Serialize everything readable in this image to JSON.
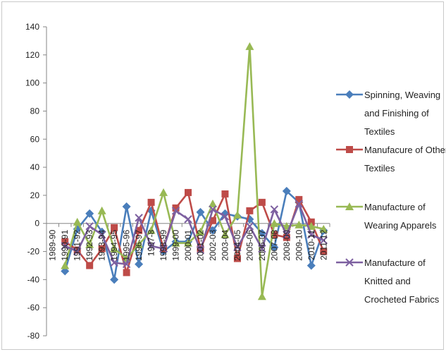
{
  "chart_data": {
    "type": "line",
    "title": "",
    "xlabel": "",
    "ylabel": "",
    "ylim": [
      -80,
      140
    ],
    "yticks": [
      140,
      120,
      100,
      80,
      60,
      40,
      20,
      0,
      -20,
      -40,
      -60,
      -80
    ],
    "grid": false,
    "legend_position": "right",
    "categories": [
      "1989-90",
      "1990-91",
      "1991-92",
      "1992-93",
      "1993-94",
      "1994-95",
      "1995-96",
      "1996-97",
      "1997-98",
      "1998-99",
      "1999-00",
      "2000-01",
      "2001-02",
      "2002-03",
      "2003-04",
      "2004-05",
      "2005-06",
      "2006-07",
      "2007-08",
      "2008-09",
      "2009-10",
      "2010-11",
      "2011-12"
    ],
    "tick_labels": [
      "1989-90",
      "1990-91",
      "1991-92",
      "1992-93",
      "1993-94",
      "1994-95",
      "1995-96",
      "1996-97",
      "1997-8",
      "1998-99",
      "1999-00",
      "2000-01",
      "2001-02",
      "2002-03",
      "2003-04",
      "2004-05",
      "2005-06",
      "2006-07",
      "2007-08",
      "2008-09",
      "2009-10",
      "2010-11",
      "2011-12"
    ],
    "series": [
      {
        "name_lines": [
          "Spinning, Weaving",
          "and Finishing of",
          "Textiles"
        ],
        "color": "#4a7ebb",
        "marker": "diamond",
        "values": [
          null,
          -34,
          -4,
          7,
          -6,
          -40,
          12,
          -29,
          9,
          -20,
          -13,
          -13,
          8,
          -5,
          7,
          5,
          3,
          -7,
          -17,
          23,
          15,
          -30,
          -5
        ]
      },
      {
        "name_lines": [
          "Manufacure of Other",
          "Textiles"
        ],
        "color": "#be4b48",
        "marker": "square",
        "values": [
          null,
          -13,
          -19,
          -30,
          -18,
          -3,
          -35,
          -5,
          15,
          -18,
          11,
          22,
          -18,
          2,
          21,
          -25,
          9,
          15,
          -8,
          -10,
          17,
          1,
          -20
        ]
      },
      {
        "name_lines": [
          "Manufacture of",
          "Wearing Apparels"
        ],
        "color": "#98b954",
        "marker": "triangle",
        "values": [
          null,
          -30,
          1,
          -15,
          9,
          -18,
          -25,
          -15,
          -5,
          22,
          -14,
          -14,
          -6,
          14,
          -8,
          6,
          126,
          -52,
          0,
          -2,
          -1,
          -2,
          -4
        ]
      },
      {
        "name_lines": [
          "Manufacture of",
          "Knitted and",
          "Crocheted Fabrics"
        ],
        "color": "#7d60a0",
        "marker": "x",
        "values": [
          null,
          -16,
          -20,
          -2,
          -8,
          -28,
          -29,
          4,
          -16,
          -18,
          9,
          3,
          -19,
          10,
          5,
          -17,
          -2,
          -18,
          10,
          -8,
          14,
          -8,
          -12
        ]
      }
    ]
  }
}
